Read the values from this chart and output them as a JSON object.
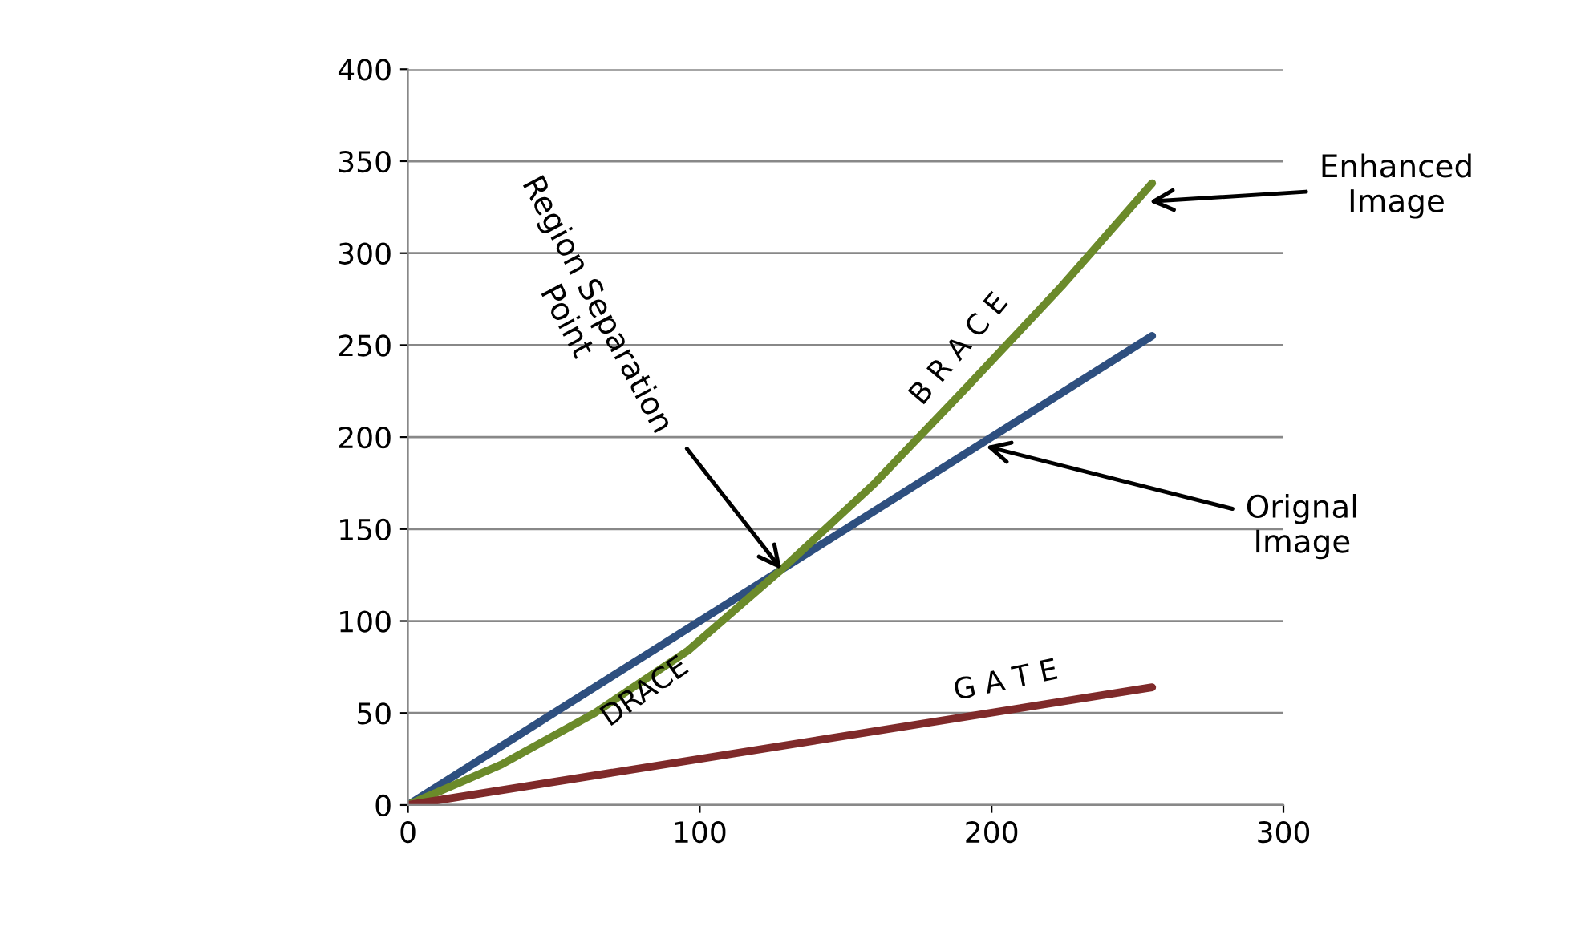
{
  "chart_data": {
    "type": "line",
    "series": [
      {
        "color": "#2e4f7f",
        "x": [
          0,
          255
        ],
        "values": [
          0,
          255
        ]
      },
      {
        "color": "#6b8a2a",
        "x": [
          0,
          32,
          64,
          96,
          128,
          160,
          192,
          224,
          255
        ],
        "values": [
          0,
          22,
          50,
          84,
          128,
          175,
          228,
          282,
          338
        ]
      },
      {
        "color": "#7f2a2a",
        "x": [
          0,
          255
        ],
        "values": [
          0,
          64
        ]
      }
    ],
    "xlim": [
      0,
      300
    ],
    "xticks": [
      0,
      100,
      200,
      300
    ],
    "ylim": [
      0,
      400
    ],
    "yticks": [
      0,
      50,
      100,
      150,
      200,
      250,
      300,
      350,
      400
    ],
    "grid": "y",
    "marker": "none",
    "line_style": "solid",
    "legend": false,
    "annotations": [
      {
        "text": "Region Separation\nPoint",
        "x": 128,
        "y": 128
      },
      "B R A C E",
      "DRACE",
      "G A T E",
      {
        "text": "Enhanced\nImage",
        "x": 254,
        "y": 328
      },
      {
        "text": "Orignal\nImage",
        "x": 198,
        "y": 195
      }
    ]
  }
}
